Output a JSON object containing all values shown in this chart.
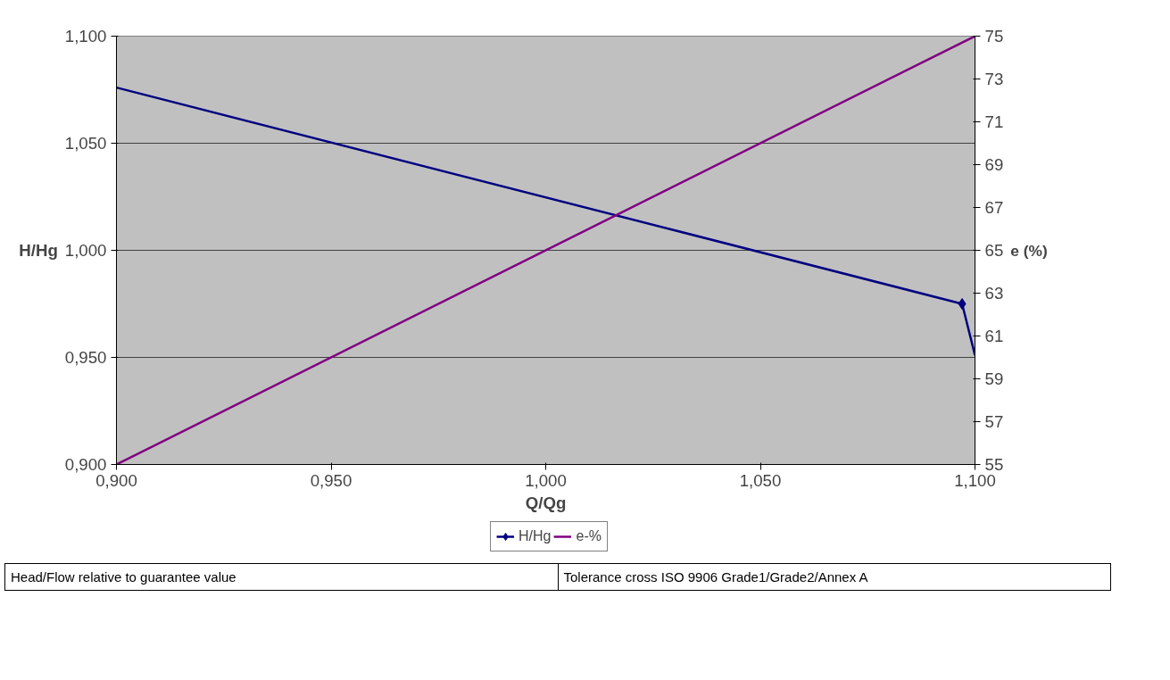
{
  "chart_data": {
    "type": "line",
    "xlabel": "Q/Qg",
    "ylabel": "H/Hg",
    "y2label": "e (%)",
    "xlim": [
      0.9,
      1.1
    ],
    "xticks": [
      {
        "value": 0.9,
        "label": "0,900"
      },
      {
        "value": 0.95,
        "label": "0,950"
      },
      {
        "value": 1.0,
        "label": "1,000"
      },
      {
        "value": 1.05,
        "label": "1,050"
      },
      {
        "value": 1.1,
        "label": "1,100"
      }
    ],
    "ylim": [
      0.9,
      1.1
    ],
    "yticks": [
      {
        "value": 0.9,
        "label": "0,900"
      },
      {
        "value": 0.95,
        "label": "0,950"
      },
      {
        "value": 1.0,
        "label": "1,000"
      },
      {
        "value": 1.05,
        "label": "1,050"
      },
      {
        "value": 1.1,
        "label": "1,100"
      }
    ],
    "y2lim": [
      55,
      75
    ],
    "y2ticks": [
      55,
      57,
      59,
      61,
      63,
      65,
      67,
      69,
      71,
      73,
      75
    ],
    "grid": "y",
    "legend": "bottom",
    "series": [
      {
        "name": "H/Hg",
        "type": "line",
        "color": "#000080",
        "x": [
          0.9,
          1.097,
          1.1
        ],
        "values": [
          1.076,
          0.975,
          0.951
        ]
      },
      {
        "type": "scatter",
        "marker": "diamond",
        "color": "#000080",
        "x": [
          1.097
        ],
        "values": [
          0.975
        ]
      },
      {
        "name": "e-%",
        "type": "line",
        "color": "#800080",
        "axis": "y2",
        "x": [
          0.9,
          1.1
        ],
        "values": [
          55,
          75
        ]
      }
    ],
    "annotations": [
      "Head/Flow relative to guarantee value",
      "Tolerance cross ISO 9906 Grade1/Grade2/Annex A"
    ]
  }
}
